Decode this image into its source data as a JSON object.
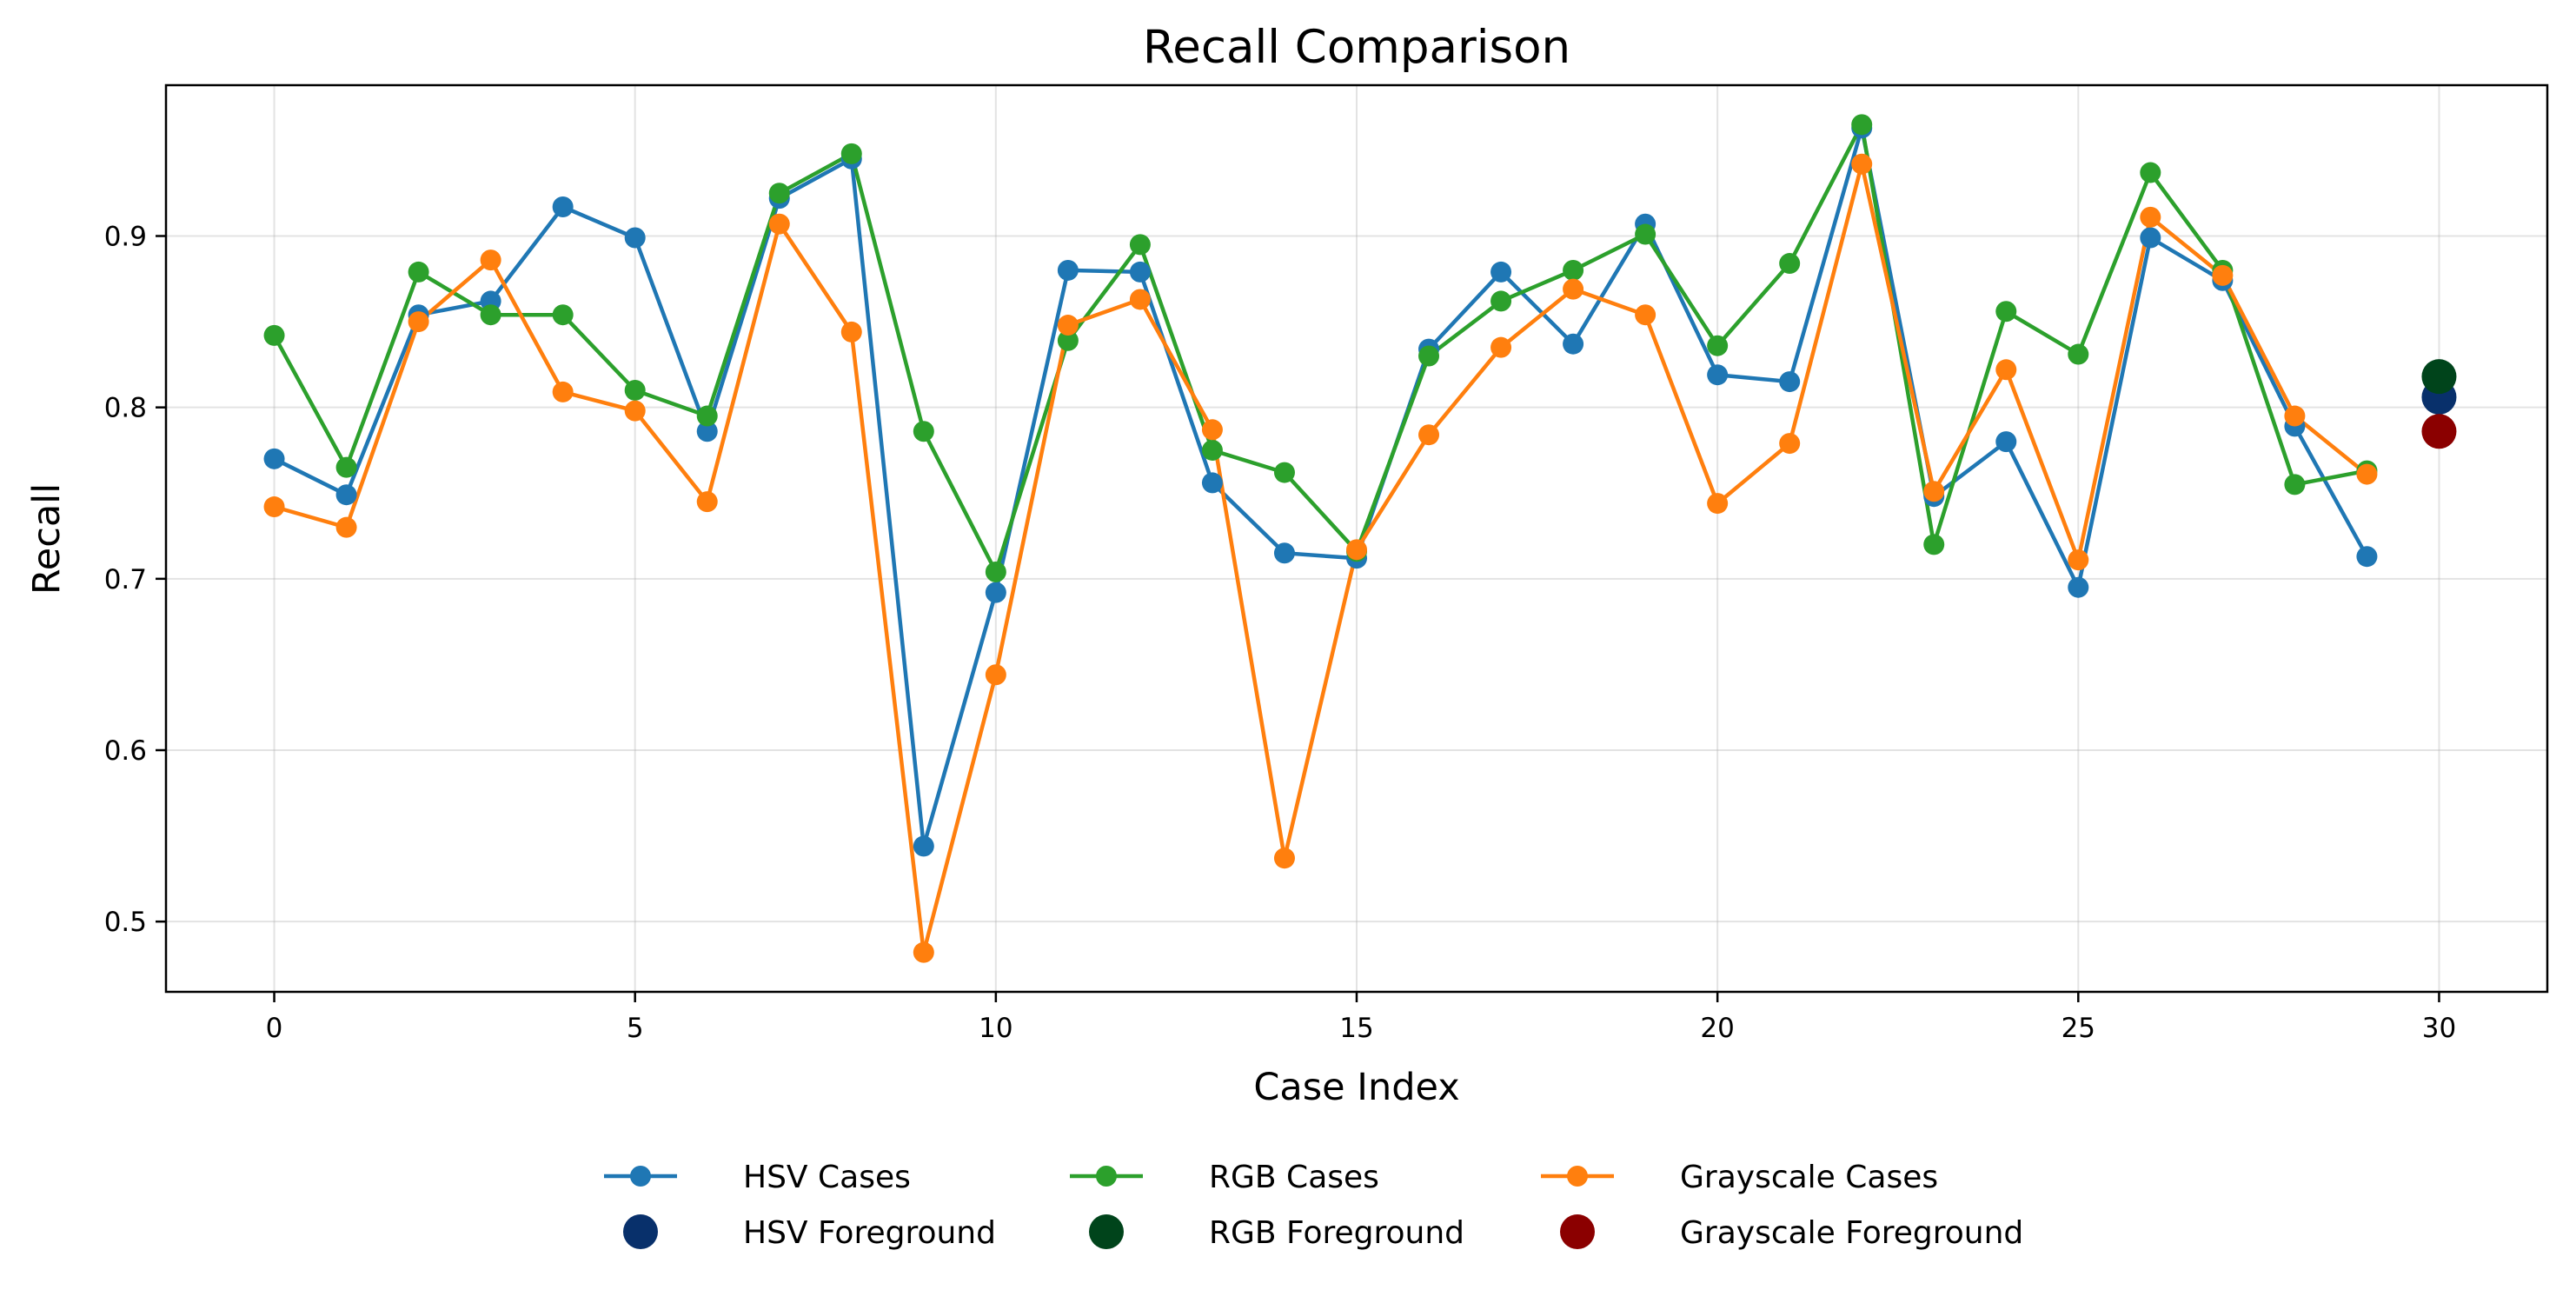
{
  "chart_data": {
    "type": "line",
    "title": "Recall Comparison",
    "xlabel": "Case Index",
    "ylabel": "Recall",
    "xlim": [
      -1.5,
      31.5
    ],
    "ylim": [
      0.459,
      0.988
    ],
    "xticks": [
      0,
      5,
      10,
      15,
      20,
      25,
      30
    ],
    "yticks": [
      0.5,
      0.6,
      0.7,
      0.8,
      0.9
    ],
    "xtick_labels": [
      "0",
      "5",
      "10",
      "15",
      "20",
      "25",
      "30"
    ],
    "ytick_labels": [
      "0.5",
      "0.6",
      "0.7",
      "0.8",
      "0.9"
    ],
    "grid": true,
    "legend_position": "bottom-center",
    "x": [
      0,
      1,
      2,
      3,
      4,
      5,
      6,
      7,
      8,
      9,
      10,
      11,
      12,
      13,
      14,
      15,
      16,
      17,
      18,
      19,
      20,
      21,
      22,
      23,
      24,
      25,
      26,
      27,
      28,
      29
    ],
    "series": [
      {
        "name": "HSV Cases",
        "color": "#1f77b4",
        "values": [
          0.77,
          0.749,
          0.854,
          0.862,
          0.917,
          0.899,
          0.786,
          0.922,
          0.945,
          0.544,
          0.692,
          0.88,
          0.879,
          0.756,
          0.715,
          0.712,
          0.834,
          0.879,
          0.837,
          0.907,
          0.819,
          0.815,
          0.963,
          0.748,
          0.78,
          0.695,
          0.899,
          0.874,
          0.789,
          0.713
        ]
      },
      {
        "name": "RGB Cases",
        "color": "#2ca02c",
        "values": [
          0.842,
          0.765,
          0.879,
          0.854,
          0.854,
          0.81,
          0.795,
          0.925,
          0.948,
          0.786,
          0.704,
          0.839,
          0.895,
          0.775,
          0.762,
          0.716,
          0.83,
          0.862,
          0.88,
          0.901,
          0.836,
          0.884,
          0.965,
          0.72,
          0.856,
          0.831,
          0.937,
          0.88,
          0.755,
          0.763
        ]
      },
      {
        "name": "Grayscale Cases",
        "color": "#ff7f0e",
        "values": [
          0.742,
          0.73,
          0.85,
          0.886,
          0.809,
          0.798,
          0.745,
          0.907,
          0.844,
          0.482,
          0.644,
          0.848,
          0.863,
          0.787,
          0.537,
          0.717,
          0.784,
          0.835,
          0.869,
          0.854,
          0.744,
          0.779,
          0.942,
          0.751,
          0.822,
          0.711,
          0.911,
          0.877,
          0.795,
          0.761
        ]
      }
    ],
    "foreground_points": [
      {
        "name": "HSV Foreground",
        "color": "#08306b",
        "x": 30,
        "y": 0.806
      },
      {
        "name": "RGB Foreground",
        "color": "#00441b",
        "x": 30,
        "y": 0.818
      },
      {
        "name": "Grayscale Foreground",
        "color": "#8b0000",
        "x": 30,
        "y": 0.786
      }
    ]
  }
}
